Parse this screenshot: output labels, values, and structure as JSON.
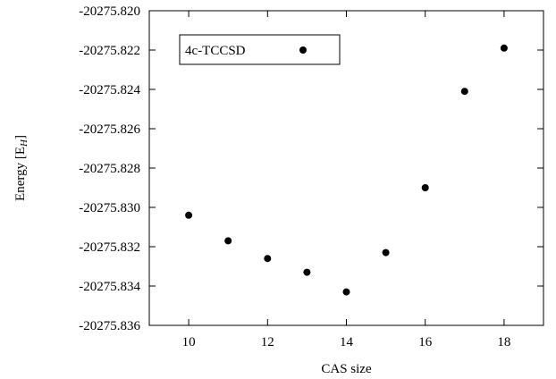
{
  "chart_data": {
    "type": "scatter",
    "xlabel": "CAS size",
    "ylabel_main": "Energy [E",
    "ylabel_sub": "H",
    "ylabel_close": "]",
    "xlim": [
      9,
      19
    ],
    "ylim": [
      -20275.836,
      -20275.82
    ],
    "xticks": [
      10,
      12,
      14,
      16,
      18
    ],
    "xtick_labels": [
      "10",
      "12",
      "14",
      "16",
      "18"
    ],
    "yticks": [
      -20275.836,
      -20275.834,
      -20275.832,
      -20275.83,
      -20275.828,
      -20275.826,
      -20275.824,
      -20275.822,
      -20275.82
    ],
    "ytick_labels": [
      "-20275.836",
      "-20275.834",
      "-20275.832",
      "-20275.830",
      "-20275.828",
      "-20275.826",
      "-20275.824",
      "-20275.822",
      "-20275.820"
    ],
    "legend_position": "top-left",
    "grid": false,
    "series": [
      {
        "name": "4c-TCCSD",
        "color": "#000000",
        "x": [
          10,
          11,
          12,
          13,
          14,
          15,
          16,
          17,
          18
        ],
        "y": [
          -20275.8304,
          -20275.8317,
          -20275.8326,
          -20275.8333,
          -20275.8343,
          -20275.8323,
          -20275.829,
          -20275.8241,
          -20275.8219
        ]
      }
    ]
  }
}
